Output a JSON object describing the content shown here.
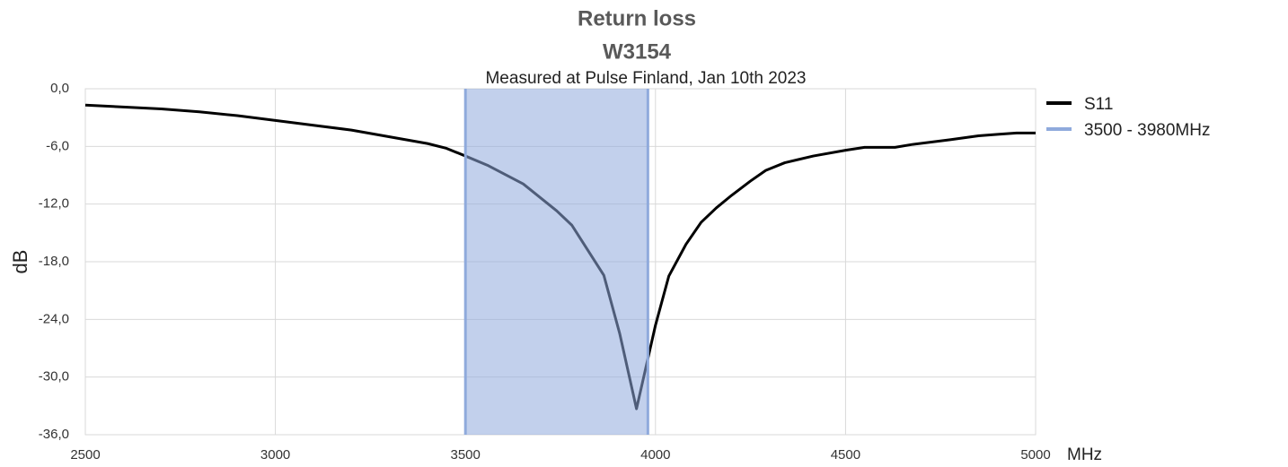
{
  "chart_data": {
    "type": "line",
    "title": "Return loss",
    "subtitle_1": "W3154",
    "subtitle": "Measured at Pulse Finland, Jan 10th 2023",
    "x_label": "MHz",
    "y_label": "dB",
    "x": [
      2500,
      2600,
      2700,
      2800,
      2900,
      3000,
      3100,
      3200,
      3300,
      3400,
      3450,
      3500,
      3560,
      3652,
      3740,
      3780,
      3864,
      3906,
      3950,
      4000,
      4035,
      4080,
      4120,
      4160,
      4200,
      4250,
      4290,
      4340,
      4415,
      4500,
      4550,
      4630,
      4675,
      4775,
      4850,
      4900,
      4950,
      5000
    ],
    "series": [
      {
        "name": "S11",
        "color": "#000000",
        "values": [
          -1.7,
          -1.9,
          -2.1,
          -2.4,
          -2.8,
          -3.3,
          -3.8,
          -4.3,
          -5.0,
          -5.7,
          -6.2,
          -7.0,
          -8.0,
          -9.9,
          -12.7,
          -14.2,
          -19.4,
          -25.5,
          -33.3,
          -24.6,
          -19.5,
          -16.2,
          -13.9,
          -12.4,
          -11.1,
          -9.6,
          -8.5,
          -7.7,
          -7.0,
          -6.4,
          -6.1,
          -6.1,
          -5.8,
          -5.3,
          -4.9,
          -4.75,
          -4.6,
          -4.6
        ]
      }
    ],
    "bands": [
      {
        "name": "3500 - 3980MHz",
        "color": "#8faadc",
        "x": [
          3500,
          3980
        ]
      }
    ],
    "xlim": [
      2500,
      5000
    ],
    "xticks": [
      2500,
      3000,
      3500,
      4000,
      4500,
      5000
    ],
    "ylim": [
      -36,
      0
    ],
    "yticks": [
      {
        "value": 0,
        "label": "0,0"
      },
      {
        "value": -6,
        "label": "-6,0"
      },
      {
        "value": -12,
        "label": "-12,0"
      },
      {
        "value": -18,
        "label": "-18,0"
      },
      {
        "value": -24,
        "label": "-24,0"
      },
      {
        "value": -30,
        "label": "-30,0"
      },
      {
        "value": -36,
        "label": "-36,0"
      }
    ],
    "grid": true,
    "legend": "right"
  }
}
